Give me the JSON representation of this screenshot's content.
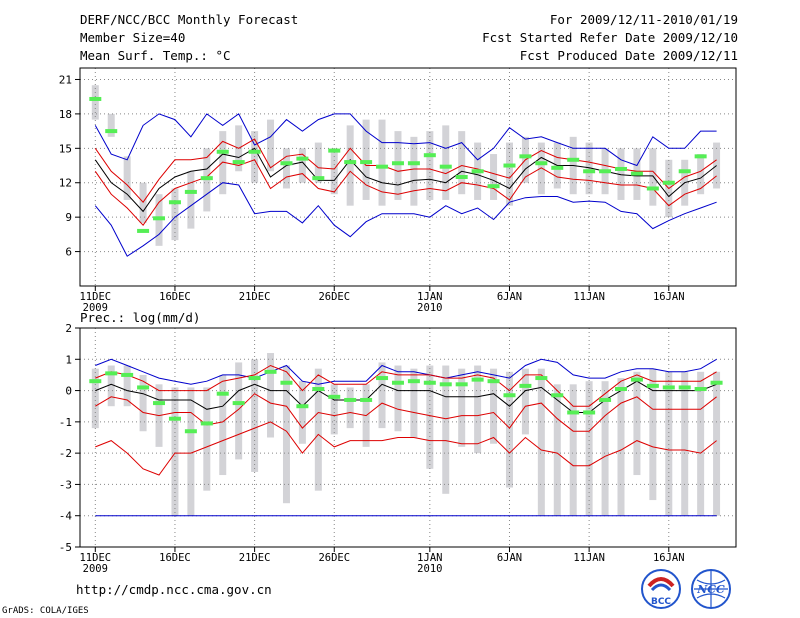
{
  "header": {
    "title": "DERF/NCC/BCC Monthly Forecast",
    "member_size": "Member Size=40",
    "variable": "Mean Surf. Temp.: °C",
    "period": "For 2009/12/11-2010/01/19",
    "start_date": "Fcst Started Refer Date 2009/12/10",
    "produced_date": "Fcst Produced Date 2009/12/11"
  },
  "footer": {
    "url": "http://cmdp.ncc.cma.gov.cn",
    "credit": "GrADS: COLA/IGES",
    "logo_bcc": "BCC",
    "logo_ncc": "NCC"
  },
  "colors": {
    "box": "#d3d3d7",
    "median": "#000000",
    "p10_p90": "#dd0000",
    "min_max": "#0000cc",
    "obs": "#55ee55",
    "grid": "#888888"
  },
  "chart_data": [
    {
      "type": "box-ensemble",
      "title": "Mean Surf. Temp.: °C",
      "xlabel": "",
      "ylabel": "°C",
      "ylim": [
        3,
        22
      ],
      "yticks": [
        6,
        9,
        12,
        15,
        18,
        21
      ],
      "xticks": [
        {
          "day": 1,
          "label": "11DEC",
          "sub": "2009"
        },
        {
          "day": 6,
          "label": "16DEC",
          "sub": ""
        },
        {
          "day": 11,
          "label": "21DEC",
          "sub": ""
        },
        {
          "day": 16,
          "label": "26DEC",
          "sub": ""
        },
        {
          "day": 22,
          "label": "1JAN",
          "sub": "2010"
        },
        {
          "day": 27,
          "label": "6JAN",
          "sub": ""
        },
        {
          "day": 32,
          "label": "11JAN",
          "sub": ""
        },
        {
          "day": 37,
          "label": "16JAN",
          "sub": ""
        }
      ],
      "days": [
        1,
        2,
        3,
        4,
        5,
        6,
        7,
        8,
        9,
        10,
        11,
        12,
        13,
        14,
        15,
        16,
        17,
        18,
        19,
        20,
        21,
        22,
        23,
        24,
        25,
        26,
        27,
        28,
        29,
        30,
        31,
        32,
        33,
        34,
        35,
        36,
        37,
        38,
        39,
        40
      ],
      "box_low": [
        17.5,
        16,
        10.5,
        8.5,
        6.5,
        7,
        8,
        9.5,
        11,
        13,
        12,
        13,
        11.5,
        12,
        12,
        11,
        10,
        10.5,
        10,
        10.5,
        10,
        10.5,
        10.5,
        11,
        10.5,
        10.5,
        10,
        12,
        11,
        11.5,
        11,
        11,
        11,
        10.5,
        10.5,
        10,
        9,
        10,
        11,
        11.5
      ],
      "box_high": [
        20.5,
        18,
        14.3,
        12,
        11,
        11.5,
        13,
        15,
        16.5,
        17,
        16.5,
        17.5,
        15,
        15,
        15.5,
        15,
        17,
        17.5,
        17.5,
        16.5,
        16,
        16.5,
        17,
        16.5,
        15.5,
        14.5,
        15.5,
        16,
        15.5,
        15.5,
        16,
        15.5,
        15,
        15,
        15,
        15,
        14,
        14,
        14.5,
        15.5
      ],
      "median": [
        14,
        12,
        11,
        9.5,
        11.5,
        12.5,
        13,
        13.2,
        14.5,
        14.2,
        15,
        12.5,
        13.5,
        13.8,
        12.2,
        12.2,
        14,
        12.5,
        12,
        11.8,
        12.2,
        12.3,
        12,
        13,
        12.7,
        12.2,
        11.5,
        13.2,
        14.2,
        13.5,
        13.5,
        13.3,
        13,
        12.7,
        12.6,
        12.6,
        10.8,
        12,
        12.4,
        13.5
      ],
      "p90": [
        15,
        13,
        11.8,
        10.3,
        12.3,
        14,
        14,
        14.2,
        15.6,
        15,
        15.8,
        13.3,
        14.3,
        14.5,
        13.3,
        13.2,
        15,
        13.5,
        13.5,
        13,
        13.2,
        13.2,
        12.8,
        13.5,
        13.2,
        12.8,
        12.4,
        14,
        14.8,
        14.2,
        14,
        13.8,
        13.5,
        13.2,
        13,
        13,
        11.5,
        12.5,
        13,
        14
      ],
      "p10": [
        13,
        11,
        9.8,
        8.3,
        10.3,
        11.5,
        12,
        12.5,
        13.8,
        13.5,
        14,
        11.5,
        12.5,
        12.8,
        11.5,
        11.2,
        13,
        11.8,
        11.2,
        11,
        11.3,
        11.5,
        11.3,
        12,
        11.8,
        11.5,
        10.5,
        12.5,
        13.3,
        12.5,
        12.3,
        12.2,
        12,
        11.8,
        11.8,
        11.5,
        10,
        11,
        11.5,
        12.6
      ],
      "max": [
        17,
        14.5,
        14,
        17,
        18,
        17.5,
        16,
        18,
        17,
        18,
        15.3,
        16,
        17.5,
        16.5,
        17.5,
        18,
        18,
        16.5,
        15.5,
        15.5,
        15.4,
        15.5,
        15,
        15.5,
        14,
        15,
        16.8,
        15.8,
        16,
        15.5,
        15,
        15,
        15,
        14,
        13.5,
        16,
        15,
        15,
        16.5,
        16.5
      ],
      "min": [
        10,
        8.3,
        5.6,
        6.5,
        7.5,
        9,
        10,
        11,
        12,
        11.8,
        9.3,
        9.5,
        9.5,
        8.5,
        10,
        8.3,
        7.3,
        8.6,
        9.3,
        9.3,
        9.3,
        9,
        10,
        9.3,
        9.8,
        8.8,
        10.3,
        10.7,
        10.8,
        10.8,
        10.3,
        10.4,
        10.3,
        9.5,
        9.3,
        8,
        8.7,
        9.3,
        9.8,
        10.3
      ],
      "obs": [
        19.3,
        16.5,
        null,
        7.8,
        8.9,
        10.3,
        11.2,
        12.4,
        14.7,
        13.8,
        14.7,
        null,
        13.7,
        14.1,
        12.4,
        14.8,
        13.8,
        13.8,
        13.4,
        13.7,
        13.7,
        14.4,
        13.4,
        12.5,
        13,
        11.7,
        13.5,
        14.3,
        13.7,
        13.3,
        14,
        13,
        13,
        13.2,
        12.8,
        11.5,
        12,
        13,
        14.3,
        null
      ]
    },
    {
      "type": "box-ensemble",
      "title": "Prec.: log(mm/d)",
      "xlabel": "",
      "ylabel": "log(mm/d)",
      "ylim": [
        -5,
        2
      ],
      "yticks": [
        -5,
        -4,
        -3,
        -2,
        -1,
        0,
        1,
        2
      ],
      "xticks": [
        {
          "day": 1,
          "label": "11DEC",
          "sub": "2009"
        },
        {
          "day": 6,
          "label": "16DEC",
          "sub": ""
        },
        {
          "day": 11,
          "label": "21DEC",
          "sub": ""
        },
        {
          "day": 16,
          "label": "26DEC",
          "sub": ""
        },
        {
          "day": 22,
          "label": "1JAN",
          "sub": "2010"
        },
        {
          "day": 27,
          "label": "6JAN",
          "sub": ""
        },
        {
          "day": 32,
          "label": "11JAN",
          "sub": ""
        },
        {
          "day": 37,
          "label": "16JAN",
          "sub": ""
        }
      ],
      "days": [
        1,
        2,
        3,
        4,
        5,
        6,
        7,
        8,
        9,
        10,
        11,
        12,
        13,
        14,
        15,
        16,
        17,
        18,
        19,
        20,
        21,
        22,
        23,
        24,
        25,
        26,
        27,
        28,
        29,
        30,
        31,
        32,
        33,
        34,
        35,
        36,
        37,
        38,
        39,
        40
      ],
      "box_low": [
        -1.2,
        -0.5,
        -0.5,
        -1.3,
        -1.8,
        -4,
        -4,
        -3.2,
        -2.7,
        -2.2,
        -2.6,
        -1.5,
        -3.6,
        -1.7,
        -3.2,
        -1.4,
        -1.2,
        -1.8,
        -1.2,
        -1.3,
        -1.5,
        -2.5,
        -3.3,
        -1.8,
        -2,
        -1.7,
        -3.1,
        -1.4,
        -4,
        -4,
        -4,
        -4,
        -4,
        -4,
        -2.7,
        -3.5,
        -4,
        -4,
        -4,
        -4
      ],
      "box_high": [
        0.7,
        0.8,
        0.8,
        0.5,
        0.2,
        0.1,
        0.1,
        0.1,
        0.5,
        0.9,
        1,
        1.2,
        0.8,
        0.3,
        0.7,
        0.2,
        0.1,
        0.2,
        0.9,
        0.8,
        0.7,
        0.8,
        0.8,
        0.7,
        0.8,
        0.7,
        0.6,
        0.7,
        0.7,
        0.2,
        0.2,
        0.3,
        0.3,
        0.4,
        0.6,
        0.7,
        0.6,
        0.6,
        0.6,
        0.6
      ],
      "median": [
        0,
        0.2,
        0,
        -0.1,
        -0.3,
        -0.3,
        -0.3,
        -0.6,
        -0.5,
        0,
        0.2,
        0,
        0,
        -0.5,
        0,
        -0.3,
        -0.3,
        -0.3,
        0.2,
        0,
        0,
        0,
        -0.2,
        -0.2,
        -0.2,
        -0.1,
        -0.5,
        0,
        0.1,
        -0.3,
        -0.7,
        -0.7,
        -0.3,
        0,
        0.3,
        0,
        0,
        0,
        0,
        0.2
      ],
      "p90": [
        0.4,
        0.6,
        0.5,
        0.3,
        0,
        0,
        0,
        0,
        0.3,
        0.4,
        0.5,
        0.8,
        0.6,
        0,
        0.5,
        0.2,
        0.2,
        0.2,
        0.6,
        0.5,
        0.5,
        0.5,
        0.4,
        0.4,
        0.5,
        0.4,
        0,
        0.5,
        0.5,
        0,
        -0.5,
        -0.5,
        -0.1,
        0.3,
        0.5,
        0.3,
        0.3,
        0.3,
        0.3,
        0.6
      ],
      "p10": [
        -0.5,
        -0.2,
        -0.3,
        -0.7,
        -0.8,
        -0.7,
        -0.7,
        -1.1,
        -1,
        -0.6,
        -0.1,
        -0.4,
        -0.5,
        -1.2,
        -0.7,
        -0.8,
        -0.7,
        -0.8,
        -0.4,
        -0.6,
        -0.7,
        -0.8,
        -0.9,
        -0.8,
        -0.8,
        -0.7,
        -1.2,
        -0.5,
        -0.4,
        -0.9,
        -1.3,
        -1.3,
        -0.8,
        -0.4,
        -0.2,
        -0.6,
        -0.6,
        -0.6,
        -0.6,
        -0.2
      ],
      "p_low": [
        -1.8,
        -1.6,
        -2,
        -2.5,
        -2.7,
        -2,
        -2,
        -1.8,
        -1.6,
        -1.4,
        -1.2,
        -1,
        -1.3,
        -2,
        -1.4,
        -1.8,
        -1.6,
        -1.6,
        -1.6,
        -1.5,
        -1.5,
        -1.6,
        -1.6,
        -1.7,
        -1.7,
        -1.5,
        -2,
        -1.5,
        -1.9,
        -2,
        -2.4,
        -2.4,
        -2.1,
        -1.9,
        -1.6,
        -1.8,
        -1.9,
        -1.9,
        -2,
        -1.6
      ],
      "max": [
        0.8,
        1,
        0.8,
        0.6,
        0.4,
        0.3,
        0.2,
        0.3,
        0.5,
        0.5,
        0.4,
        0.6,
        0.8,
        0.3,
        0.2,
        0.3,
        0.3,
        0.3,
        0.8,
        0.6,
        0.6,
        0.5,
        0.4,
        0.5,
        0.6,
        0.5,
        0.4,
        0.8,
        1,
        0.9,
        0.5,
        0.4,
        0.4,
        0.6,
        0.7,
        0.7,
        0.6,
        0.6,
        0.7,
        1
      ],
      "min": [
        -4,
        -4,
        -4,
        -4,
        -4,
        -4,
        -4,
        -4,
        -4,
        -4,
        -4,
        -4,
        -4,
        -4,
        -4,
        -4,
        -4,
        -4,
        -4,
        -4,
        -4,
        -4,
        -4,
        -4,
        -4,
        -4,
        -4,
        -4,
        -4,
        -4,
        -4,
        -4,
        -4,
        -4,
        -4,
        -4,
        -4,
        -4,
        -4,
        -4
      ],
      "obs": [
        0.3,
        0.55,
        0.5,
        0.1,
        -0.4,
        -0.9,
        -1.3,
        -1.05,
        -0.1,
        -0.4,
        0.4,
        0.6,
        0.25,
        -0.5,
        0.05,
        -0.2,
        -0.3,
        -0.3,
        0.4,
        0.25,
        0.3,
        0.25,
        0.2,
        0.2,
        0.35,
        0.3,
        -0.15,
        0.15,
        0.4,
        -0.15,
        -0.7,
        -0.7,
        -0.3,
        0.05,
        0.35,
        0.15,
        0.1,
        0.1,
        0.05,
        0.25
      ]
    }
  ]
}
